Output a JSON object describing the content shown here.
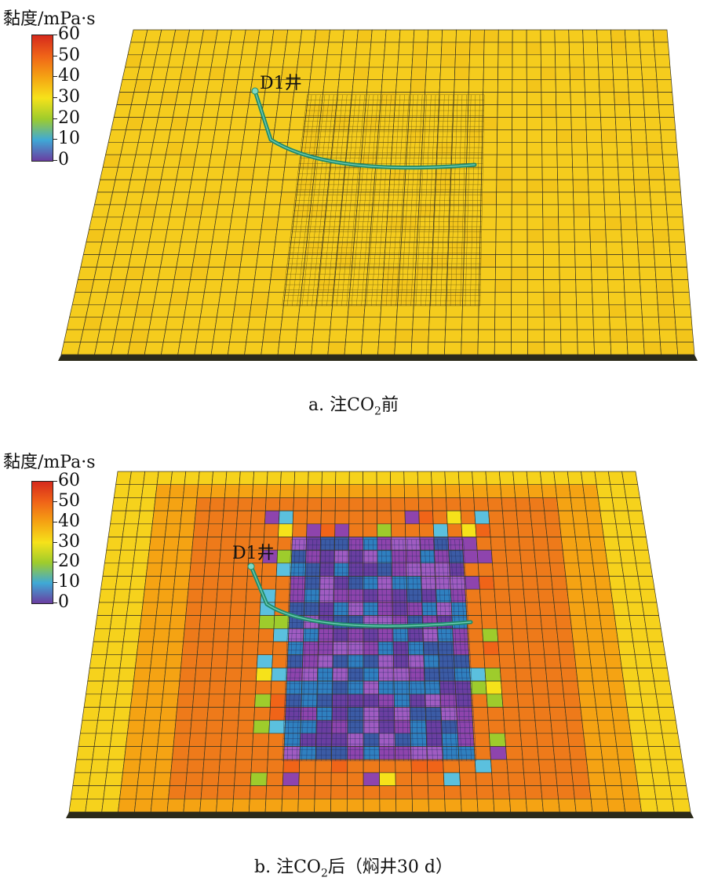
{
  "colorbar": {
    "title": "黏度/mPa·s",
    "ticks": [
      "60",
      "50",
      "40",
      "30",
      "20",
      "10",
      "0"
    ],
    "colors": [
      "#d62a1c",
      "#f06418",
      "#f5a313",
      "#f6e21a",
      "#9ecc2c",
      "#3fa9d6",
      "#6a3ea1"
    ]
  },
  "panels": [
    {
      "well_label": "D1井",
      "caption": {
        "prefix": "a. 注CO",
        "sub": "2",
        "suffix": "前"
      }
    },
    {
      "well_label": "D1井",
      "caption": {
        "prefix": "b. 注CO",
        "sub": "2",
        "suffix": "后（焖井30 d）"
      }
    }
  ]
}
